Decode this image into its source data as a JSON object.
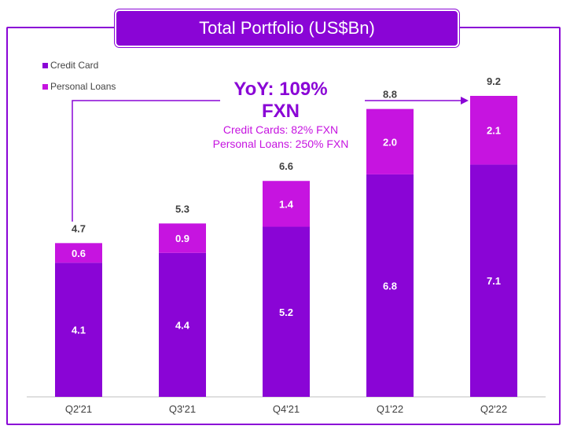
{
  "title": "Total Portfolio (US$Bn)",
  "legend": {
    "credit": "Credit Card",
    "personal": "Personal Loans"
  },
  "callout": {
    "yoy": "YoY: 109%",
    "fxn": "FXN",
    "line1": "Credit Cards: 82% FXN",
    "line2": "Personal Loans: 250% FXN"
  },
  "colors": {
    "credit": "#8a05d6",
    "personal": "#c614e0",
    "frame": "#8a05d6"
  },
  "chart_data": {
    "type": "bar",
    "stacked": true,
    "title": "Total Portfolio (US$Bn)",
    "categories": [
      "Q2'21",
      "Q3'21",
      "Q4'21",
      "Q1'22",
      "Q2'22"
    ],
    "series": [
      {
        "name": "Credit Card",
        "values": [
          4.1,
          4.4,
          5.2,
          6.8,
          7.1
        ]
      },
      {
        "name": "Personal Loans",
        "values": [
          0.6,
          0.9,
          1.4,
          2.0,
          2.1
        ]
      }
    ],
    "totals": [
      4.7,
      5.3,
      6.6,
      8.8,
      9.2
    ],
    "ylim": [
      0,
      9.2
    ],
    "grid": false,
    "legend_position": "top-left"
  }
}
